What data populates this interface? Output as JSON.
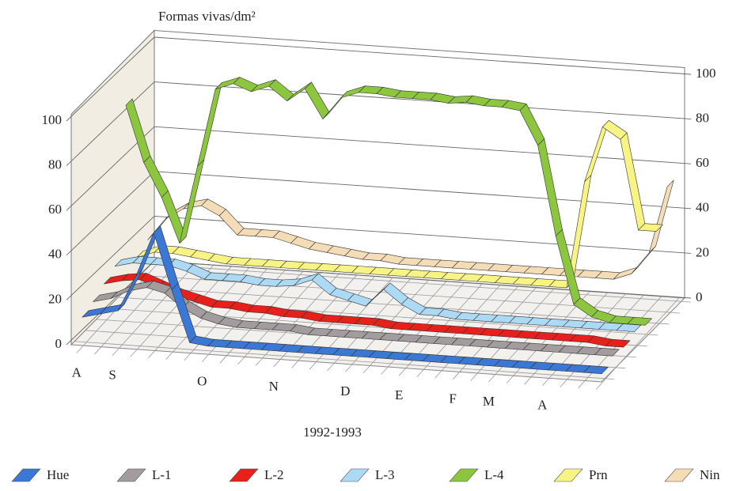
{
  "chart_data": {
    "type": "ribbon3d",
    "title": "Formas vivas/dm²",
    "xlabel": "1992-1993",
    "categories": [
      "A",
      null,
      "S",
      null,
      null,
      null,
      null,
      "O",
      null,
      null,
      null,
      "N",
      null,
      null,
      null,
      "D",
      null,
      null,
      "E",
      null,
      null,
      "F",
      null,
      "M",
      null,
      null,
      "A",
      null,
      null,
      null
    ],
    "series": [
      {
        "name": "Hue",
        "color": "#3b78d6",
        "values": [
          10,
          12,
          14,
          30,
          50,
          25,
          2,
          1,
          1,
          1,
          1,
          1,
          1,
          1,
          1,
          1,
          1,
          1,
          1,
          1,
          1,
          1,
          1,
          1,
          1,
          1,
          1,
          1,
          1,
          1
        ]
      },
      {
        "name": "L-1",
        "color": "#a39c9e",
        "values": [
          12,
          14,
          18,
          20,
          18,
          12,
          8,
          6,
          5,
          5,
          5,
          5,
          4,
          4,
          4,
          4,
          4,
          4,
          4,
          4,
          4,
          4,
          4,
          4,
          4,
          4,
          4,
          4,
          4,
          4
        ]
      },
      {
        "name": "L-2",
        "color": "#e8201c",
        "values": [
          15,
          17,
          18,
          15,
          12,
          10,
          8,
          8,
          7,
          7,
          6,
          6,
          5,
          5,
          5,
          5,
          4,
          4,
          4,
          4,
          4,
          4,
          4,
          4,
          4,
          4,
          4,
          4,
          3,
          3
        ]
      },
      {
        "name": "L-3",
        "color": "#acd9f4",
        "values": [
          18,
          20,
          20,
          20,
          18,
          15,
          15,
          15,
          14,
          14,
          15,
          18,
          12,
          10,
          8,
          16,
          10,
          6,
          6,
          5,
          5,
          5,
          5,
          5,
          5,
          5,
          5,
          5,
          5,
          5
        ]
      },
      {
        "name": "L-4",
        "color": "#8cc63e",
        "values": [
          85,
          60,
          45,
          25,
          60,
          95,
          98,
          95,
          98,
          92,
          98,
          85,
          95,
          98,
          98,
          97,
          97,
          97,
          96,
          97,
          96,
          96,
          95,
          80,
          40,
          10,
          5,
          3,
          3,
          3
        ]
      },
      {
        "name": "Prn",
        "color": "#f8f484",
        "values": [
          12,
          15,
          15,
          14,
          13,
          12,
          12,
          12,
          12,
          12,
          12,
          12,
          12,
          12,
          12,
          12,
          12,
          12,
          12,
          12,
          12,
          12,
          12,
          12,
          12,
          60,
          85,
          80,
          40,
          40
        ]
      },
      {
        "name": "Nin",
        "color": "#f3dcb6",
        "values": [
          15,
          25,
          30,
          32,
          28,
          20,
          20,
          20,
          18,
          16,
          15,
          14,
          13,
          13,
          12,
          12,
          12,
          12,
          12,
          12,
          12,
          12,
          12,
          12,
          12,
          12,
          12,
          15,
          25,
          55
        ]
      }
    ],
    "ylim": [
      0,
      100
    ],
    "yticks": [
      0,
      20,
      40,
      60,
      80,
      100
    ],
    "y2lim": [
      0,
      100
    ],
    "y2ticks": [
      0,
      20,
      40,
      60,
      80,
      100
    ],
    "grid": true
  }
}
